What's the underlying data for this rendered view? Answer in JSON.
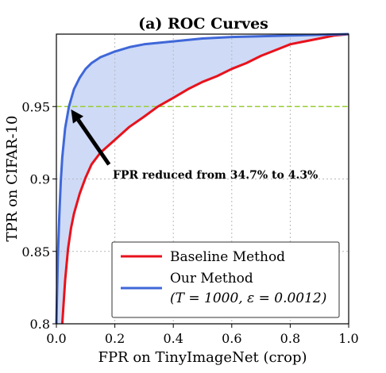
{
  "chart_data": {
    "type": "line",
    "title": "(a) ROC Curves",
    "xlabel": "FPR on TinyImageNet (crop)",
    "ylabel": "TPR on CIFAR-10",
    "xlim": [
      0.0,
      1.0
    ],
    "ylim": [
      0.8,
      1.0
    ],
    "xticks": [
      "0.0",
      "0.2",
      "0.4",
      "0.6",
      "0.8",
      "1.0"
    ],
    "yticks": [
      "0.8",
      "0.85",
      "0.9",
      "0.95"
    ],
    "grid": true,
    "legend_position": "bottom-right",
    "reference_line": {
      "y": 0.95,
      "color": "#9acd32"
    },
    "annotation": {
      "text": "FPR reduced from 34.7% to 4.3%",
      "arrow_from": [
        0.18,
        0.91
      ],
      "arrow_to": [
        0.05,
        0.948
      ]
    },
    "fill_between": {
      "color": "#c6d4f5"
    },
    "series": [
      {
        "name": "Baseline Method",
        "color": "#e8121c",
        "x": [
          0.02,
          0.03,
          0.04,
          0.05,
          0.06,
          0.08,
          0.1,
          0.12,
          0.15,
          0.2,
          0.25,
          0.3,
          0.347,
          0.4,
          0.45,
          0.5,
          0.55,
          0.6,
          0.65,
          0.7,
          0.75,
          0.8,
          0.85,
          0.9,
          0.95,
          1.0
        ],
        "y": [
          0.8,
          0.83,
          0.852,
          0.866,
          0.876,
          0.89,
          0.901,
          0.91,
          0.918,
          0.927,
          0.936,
          0.943,
          0.95,
          0.956,
          0.962,
          0.967,
          0.971,
          0.976,
          0.98,
          0.985,
          0.989,
          0.993,
          0.995,
          0.997,
          0.999,
          1.0
        ]
      },
      {
        "name": "Our Method",
        "name_line2": "(T = 1000, ε = 0.0012)",
        "color": "#3f67d8",
        "x": [
          0.0,
          0.005,
          0.01,
          0.015,
          0.02,
          0.03,
          0.043,
          0.06,
          0.08,
          0.1,
          0.12,
          0.15,
          0.2,
          0.25,
          0.3,
          0.4,
          0.5,
          0.6,
          0.8,
          1.0
        ],
        "y": [
          0.8,
          0.845,
          0.875,
          0.898,
          0.915,
          0.935,
          0.95,
          0.962,
          0.97,
          0.976,
          0.98,
          0.984,
          0.988,
          0.991,
          0.993,
          0.995,
          0.997,
          0.998,
          0.999,
          1.0
        ]
      }
    ]
  }
}
